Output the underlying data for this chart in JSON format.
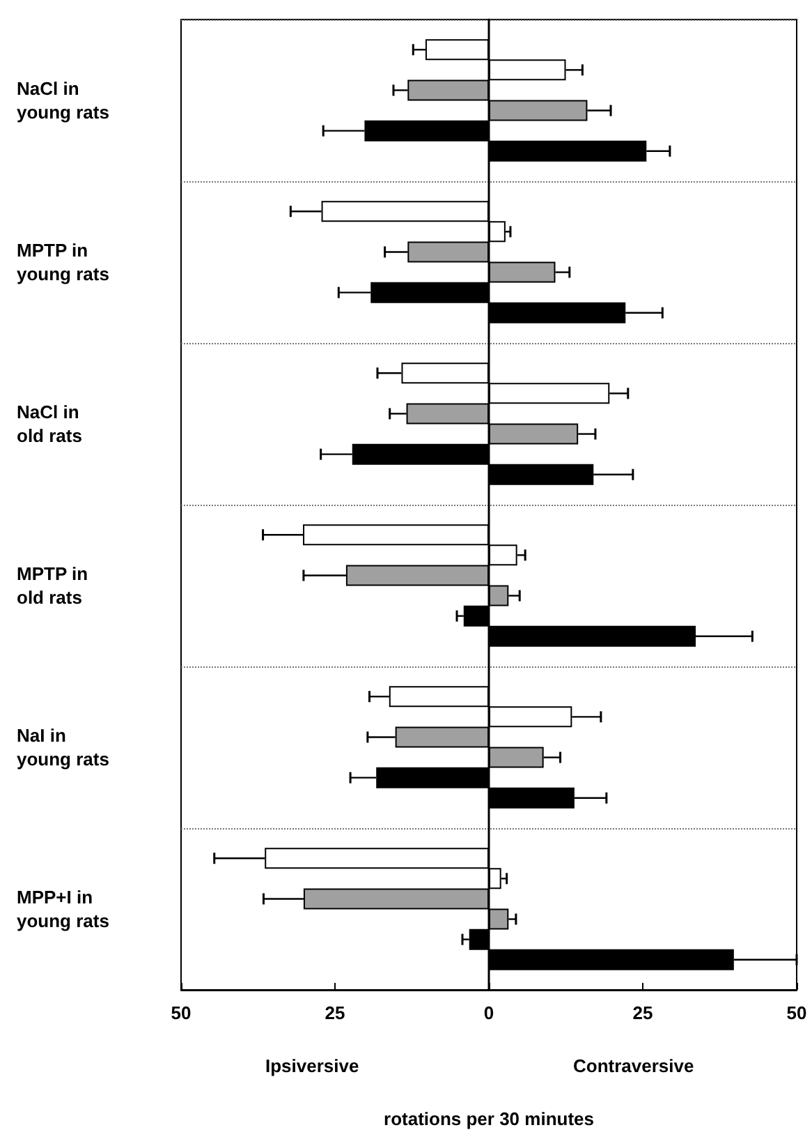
{
  "chart_data": {
    "type": "bar",
    "orientation": "horizontal",
    "categories": [
      "NaCl in\nyoung rats",
      "MPTP in\nyoung rats",
      "NaCl in\nold rats",
      "MPTP in\nold rats",
      "NaI in\nyoung rats",
      "MPP+I in\nyoung rats"
    ],
    "series": [
      {
        "color": "#ffffff",
        "values": [
          -10.3,
          -27.2,
          -14.2,
          -30.2,
          -16.2,
          -36.4
        ],
        "errors": [
          2.0,
          5.0,
          3.9,
          6.5,
          3.2,
          8.2
        ]
      },
      {
        "color": "#ffffff",
        "values": [
          12.5,
          2.7,
          19.6,
          4.6,
          13.5,
          2.0
        ],
        "errors": [
          2.7,
          0.8,
          3.0,
          1.3,
          4.7,
          0.9
        ]
      },
      {
        "color": "#a0a0a0",
        "values": [
          -13.2,
          -13.2,
          -13.4,
          -23.2,
          -15.2,
          -30.1
        ],
        "errors": [
          2.3,
          3.7,
          2.7,
          6.9,
          4.5,
          6.5
        ]
      },
      {
        "color": "#a0a0a0",
        "values": [
          16.0,
          10.8,
          14.5,
          3.2,
          8.9,
          3.2
        ],
        "errors": [
          3.8,
          2.3,
          2.8,
          1.8,
          2.7,
          1.2
        ]
      },
      {
        "color": "#000000",
        "values": [
          -20.2,
          -19.2,
          -22.2,
          -4.1,
          -18.3,
          -3.2
        ],
        "errors": [
          6.7,
          5.2,
          5.1,
          1.1,
          4.2,
          1.1
        ]
      },
      {
        "color": "#000000",
        "values": [
          25.6,
          22.2,
          17.0,
          33.6,
          13.9,
          39.8
        ],
        "errors": [
          3.8,
          6.0,
          6.4,
          9.2,
          5.2,
          10.2
        ]
      }
    ],
    "xlim": [
      -50,
      50
    ],
    "xticks": [
      {
        "value": -50,
        "label": "50"
      },
      {
        "value": -25,
        "label": "25"
      },
      0,
      25,
      50
    ],
    "xlabel": "rotations per 30 minutes",
    "annotations": [
      "Ipsiversive",
      "Contraversive"
    ],
    "grid": "y"
  }
}
